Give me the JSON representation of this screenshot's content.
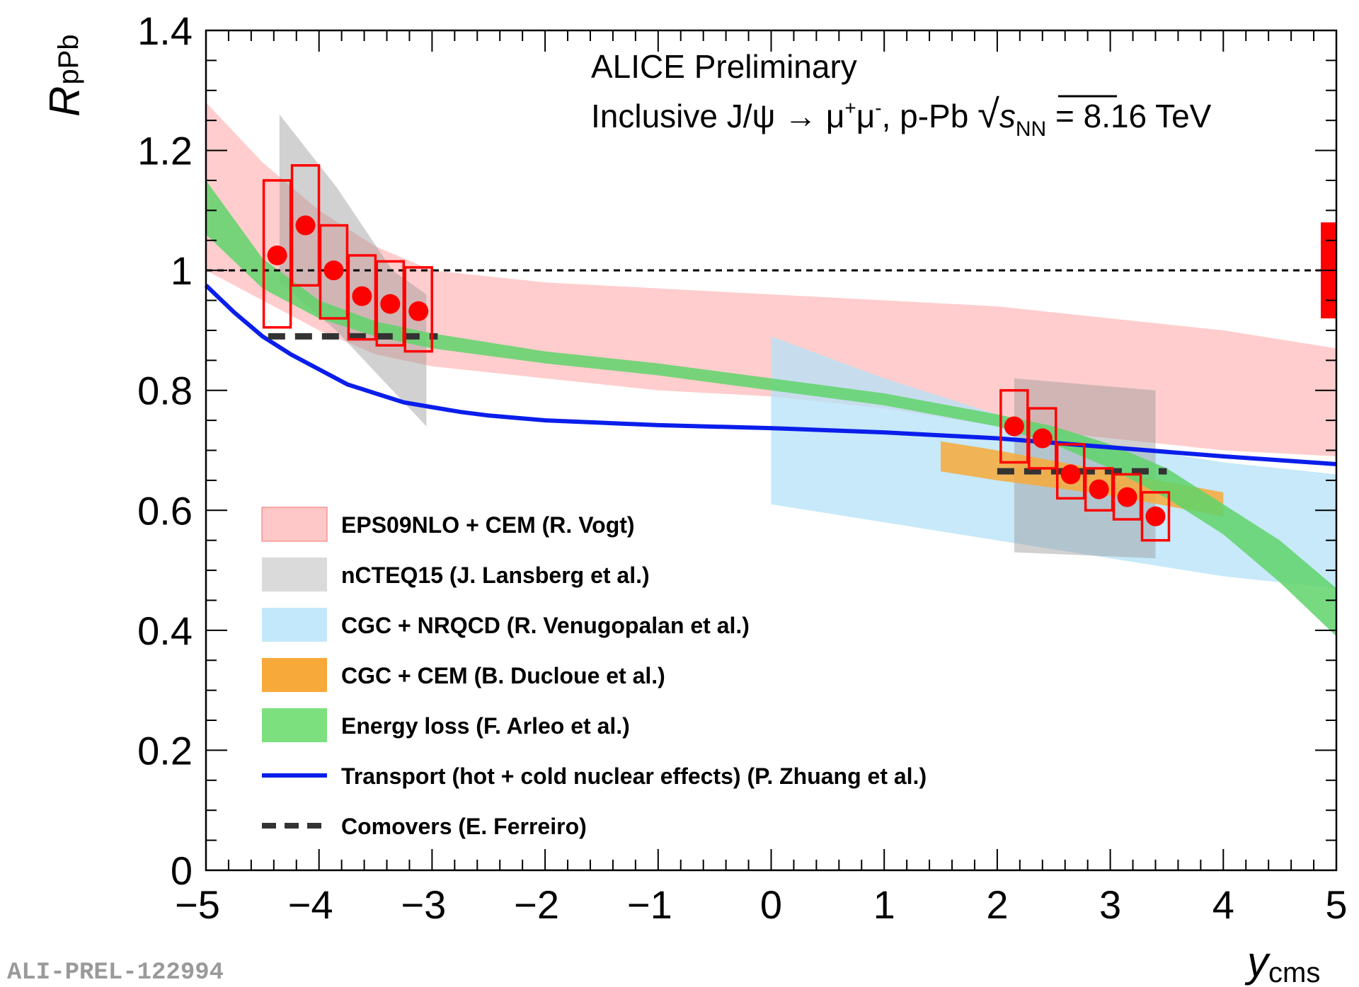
{
  "header": {
    "line1": "ALICE Preliminary",
    "line2_prefix": "Inclusive J/ψ → μ",
    "line2_mid": "μ",
    "line2_suffix": ", p-Pb ",
    "sqrt_s": "s",
    "sqrt_s_sub": "NN",
    "energy": " = 8.16 TeV"
  },
  "watermark": "ALI-PREL-122994",
  "axes": {
    "ylabel_main": "R",
    "ylabel_sub": "pPb",
    "xlabel_main": "y",
    "xlabel_sub": "cms"
  },
  "colors": {
    "eps09": "#ffc8c8",
    "ncteq": "#cbcbcb",
    "cgc_nrqcd": "#b4e1f7",
    "cgc_cem": "#f7a93a",
    "eloss": "#5fd36a",
    "transport": "#0a1eeb",
    "comovers": "#333333",
    "data": "#ff0000",
    "global_unc": "#ff0000"
  },
  "legend": [
    {
      "label": "EPS09NLO + CEM (R. Vogt)",
      "kind": "band",
      "color": "#ffc8c8"
    },
    {
      "label": "nCTEQ15 (J. Lansberg et al.)",
      "kind": "band",
      "color": "#dadada"
    },
    {
      "label": "CGC + NRQCD (R. Venugopalan et al.)",
      "kind": "band",
      "color": "#c4e8fb"
    },
    {
      "label": "CGC + CEM (B. Ducloue et al.)",
      "kind": "band",
      "color": "#f7a93a"
    },
    {
      "label": "Energy loss (F. Arleo et al.)",
      "kind": "band",
      "color": "#7ce07f"
    },
    {
      "label": "Transport (hot + cold nuclear effects) (P. Zhuang et al.)",
      "kind": "line",
      "color": "#0a1eeb"
    },
    {
      "label": "Comovers (E. Ferreiro)",
      "kind": "dashed",
      "color": "#333333"
    }
  ],
  "chart_data": {
    "type": "scatter",
    "title": "ALICE Preliminary",
    "xlabel": "y_cms",
    "ylabel": "R_pPb",
    "xlim": [
      -5,
      5
    ],
    "ylim": [
      0,
      1.4
    ],
    "x_ticks": [
      "−5",
      "−4",
      "−3",
      "−2",
      "−1",
      "0",
      "1",
      "2",
      "3",
      "4",
      "5"
    ],
    "y_ticks": [
      "0",
      "0.2",
      "0.4",
      "0.6",
      "0.8",
      "1",
      "1.2",
      "1.4"
    ],
    "reference_line": 1.0,
    "global_uncertainty": {
      "x": 4.95,
      "low": 0.92,
      "high": 1.08
    },
    "data": [
      {
        "x": -4.37,
        "y": 1.025,
        "sys_low": 0.905,
        "sys_high": 1.15
      },
      {
        "x": -4.12,
        "y": 1.075,
        "sys_low": 0.975,
        "sys_high": 1.175
      },
      {
        "x": -3.87,
        "y": 1.0,
        "sys_low": 0.92,
        "sys_high": 1.075
      },
      {
        "x": -3.62,
        "y": 0.957,
        "sys_low": 0.885,
        "sys_high": 1.025
      },
      {
        "x": -3.37,
        "y": 0.944,
        "sys_low": 0.875,
        "sys_high": 1.015
      },
      {
        "x": -3.12,
        "y": 0.932,
        "sys_low": 0.865,
        "sys_high": 1.005
      },
      {
        "x": 2.15,
        "y": 0.74,
        "sys_low": 0.68,
        "sys_high": 0.8
      },
      {
        "x": 2.4,
        "y": 0.72,
        "sys_low": 0.67,
        "sys_high": 0.77
      },
      {
        "x": 2.65,
        "y": 0.66,
        "sys_low": 0.62,
        "sys_high": 0.71
      },
      {
        "x": 2.9,
        "y": 0.635,
        "sys_low": 0.6,
        "sys_high": 0.67
      },
      {
        "x": 3.15,
        "y": 0.622,
        "sys_low": 0.585,
        "sys_high": 0.66
      },
      {
        "x": 3.4,
        "y": 0.59,
        "sys_low": 0.55,
        "sys_high": 0.63
      }
    ],
    "series": [
      {
        "name": "EPS09NLO + CEM (R. Vogt)",
        "kind": "band",
        "x": [
          -5,
          -4.5,
          -4,
          -3.5,
          -3,
          -2,
          -1,
          0,
          1,
          2,
          3,
          4,
          5
        ],
        "lo": [
          1.0,
          0.95,
          0.9,
          0.86,
          0.84,
          0.82,
          0.8,
          0.79,
          0.77,
          0.74,
          0.72,
          0.7,
          0.69
        ],
        "hi": [
          1.28,
          1.18,
          1.1,
          1.04,
          1.0,
          0.98,
          0.97,
          0.96,
          0.95,
          0.94,
          0.92,
          0.9,
          0.87
        ]
      },
      {
        "name": "nCTEQ15 (J. Lansberg et al.)",
        "kind": "band",
        "x": [
          -4.35,
          -3.85,
          -3.35,
          -3.05
        ],
        "lo": [
          0.98,
          0.9,
          0.8,
          0.74
        ],
        "hi": [
          1.26,
          1.14,
          1.0,
          0.96
        ]
      },
      {
        "name": "nCTEQ15 (J. Lansberg et al.)",
        "kind": "band",
        "x": [
          2.15,
          3.4
        ],
        "lo": [
          0.53,
          0.52
        ],
        "hi": [
          0.82,
          0.8
        ]
      },
      {
        "name": "CGC + NRQCD (R. Venugopalan et al.)",
        "kind": "band",
        "x": [
          0,
          1,
          2,
          3,
          4,
          5
        ],
        "lo": [
          0.61,
          0.58,
          0.55,
          0.52,
          0.49,
          0.47
        ],
        "hi": [
          0.89,
          0.82,
          0.76,
          0.71,
          0.68,
          0.66
        ]
      },
      {
        "name": "CGC + CEM (B. Ducloue et al.)",
        "kind": "band",
        "x": [
          1.5,
          2,
          3,
          4
        ],
        "lo": [
          0.665,
          0.65,
          0.625,
          0.59
        ],
        "hi": [
          0.715,
          0.7,
          0.665,
          0.63
        ]
      },
      {
        "name": "Energy loss (F. Arleo et al.)",
        "kind": "band",
        "x": [
          -5,
          -4.5,
          -4,
          -3.5,
          -3,
          -2,
          -1,
          0,
          1,
          2,
          2.5,
          3,
          3.5,
          4,
          4.5,
          5
        ],
        "lo": [
          1.06,
          0.97,
          0.92,
          0.89,
          0.87,
          0.845,
          0.825,
          0.8,
          0.775,
          0.74,
          0.71,
          0.67,
          0.62,
          0.56,
          0.48,
          0.39
        ],
        "hi": [
          1.15,
          1.02,
          0.95,
          0.915,
          0.895,
          0.865,
          0.845,
          0.82,
          0.795,
          0.76,
          0.74,
          0.71,
          0.67,
          0.61,
          0.55,
          0.47
        ]
      },
      {
        "name": "Transport (hot + cold nuclear effects) (P. Zhuang et al.)",
        "kind": "line",
        "x": [
          -5,
          -4.75,
          -4.5,
          -4.25,
          -4,
          -3.75,
          -3.5,
          -3.25,
          -3,
          -2.75,
          -2.5,
          -2,
          -1.5,
          -1,
          0,
          1,
          2,
          3,
          4,
          5
        ],
        "y": [
          0.975,
          0.93,
          0.89,
          0.86,
          0.835,
          0.81,
          0.795,
          0.78,
          0.772,
          0.764,
          0.758,
          0.75,
          0.746,
          0.742,
          0.737,
          0.73,
          0.72,
          0.705,
          0.69,
          0.677
        ]
      },
      {
        "name": "Comovers (E. Ferreiro)",
        "kind": "dashed",
        "segments": [
          {
            "x": [
              -4.45,
              -2.95
            ],
            "y": 0.89
          },
          {
            "x": [
              2.0,
              3.5
            ],
            "y": 0.665
          }
        ]
      }
    ]
  }
}
